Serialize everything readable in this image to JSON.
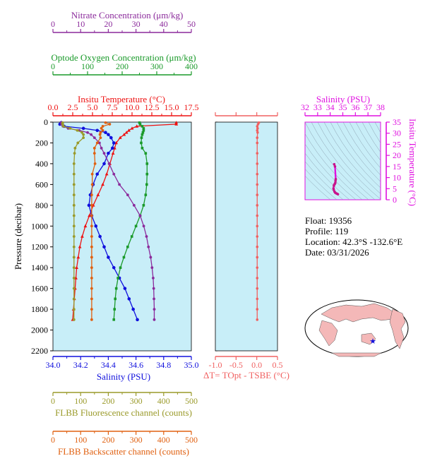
{
  "colors": {
    "nitrate": "#8b2a9b",
    "oxygen": "#1a9a2a",
    "temperature": "#ee1111",
    "salinity": "#1010dd",
    "fluorescence": "#9a9a2a",
    "backscatter": "#e06010",
    "delta_t": "#f06060",
    "ts_axis": "#e010e0",
    "panel_bg": "#c8eef8",
    "land": "#f4b8b8"
  },
  "float_info": {
    "float_line": "Float:  19356",
    "profile_line": "Profile:  119",
    "location_line": "Location:  42.3°S  -132.6°E",
    "date_line": "Date:  03/31/2026"
  },
  "chart_data": [
    {
      "type": "line",
      "panel": "main-profile",
      "ylabel": "Pressure (decibar)",
      "ylim": [
        0,
        2200
      ],
      "yticks": [
        0,
        200,
        400,
        600,
        800,
        1000,
        1200,
        1400,
        1600,
        1800,
        2000,
        2200
      ],
      "axes": [
        {
          "key": "nitrate",
          "label": "Nitrate Concentration (μm/kg)",
          "range": [
            0,
            50
          ],
          "ticks": [
            0,
            10,
            20,
            30,
            40,
            50
          ],
          "position": "top-1"
        },
        {
          "key": "oxygen",
          "label": "Optode Oxygen Concentration (μm/kg)",
          "range": [
            0,
            400
          ],
          "ticks": [
            0,
            100,
            200,
            300,
            400
          ],
          "position": "top-2"
        },
        {
          "key": "temperature",
          "label": "Insitu Temperature (°C)",
          "range": [
            0,
            17.5
          ],
          "ticks": [
            "0.0",
            "2.5",
            "5.0",
            "7.5",
            "10.0",
            "12.5",
            "15.0",
            "17.5"
          ],
          "position": "top-3"
        },
        {
          "key": "salinity",
          "label": "Salinity (PSU)",
          "range": [
            34.0,
            35.0
          ],
          "ticks": [
            "34.0",
            "34.2",
            "34.4",
            "34.6",
            "34.8",
            "35.0"
          ],
          "position": "bottom-1"
        },
        {
          "key": "fluorescence",
          "label": "FLBB Fluorescence channel (counts)",
          "range": [
            0,
            500
          ],
          "ticks": [
            0,
            100,
            200,
            300,
            400,
            500
          ],
          "position": "bottom-2"
        },
        {
          "key": "backscatter",
          "label": "FLBB Backscatter channel (counts)",
          "range": [
            0,
            500
          ],
          "ticks": [
            0,
            100,
            200,
            300,
            400,
            500
          ],
          "position": "bottom-3"
        }
      ],
      "series": [
        {
          "key": "temperature",
          "pressure": [
            5,
            20,
            40,
            60,
            80,
            100,
            120,
            150,
            200,
            250,
            300,
            400,
            500,
            600,
            700,
            800,
            900,
            1000,
            1100,
            1200,
            1300,
            1400,
            1500,
            1600,
            1700,
            1800,
            1900
          ],
          "values": [
            15.6,
            15.6,
            10.6,
            10.0,
            9.6,
            9.3,
            9.0,
            8.5,
            8.0,
            7.8,
            7.6,
            7.2,
            6.8,
            6.3,
            5.7,
            5.1,
            4.6,
            4.1,
            3.7,
            3.4,
            3.2,
            3.0,
            2.9,
            2.8,
            2.7,
            2.6,
            2.5
          ]
        },
        {
          "key": "salinity",
          "pressure": [
            5,
            20,
            40,
            60,
            80,
            100,
            120,
            150,
            200,
            250,
            300,
            400,
            500,
            600,
            700,
            800,
            900,
            1000,
            1100,
            1200,
            1300,
            1400,
            1500,
            1600,
            1700,
            1800,
            1900
          ],
          "values": [
            34.06,
            34.05,
            34.08,
            34.22,
            34.32,
            34.38,
            34.4,
            34.42,
            34.44,
            34.43,
            34.4,
            34.37,
            34.32,
            34.29,
            34.27,
            34.26,
            34.28,
            34.31,
            34.34,
            34.37,
            34.4,
            34.44,
            34.48,
            34.52,
            34.55,
            34.58,
            34.61
          ]
        },
        {
          "key": "oxygen",
          "pressure": [
            5,
            20,
            40,
            60,
            80,
            100,
            120,
            150,
            200,
            250,
            300,
            400,
            500,
            600,
            700,
            800,
            900,
            1000,
            1100,
            1200,
            1300,
            1400,
            1500,
            1600,
            1700,
            1800,
            1900
          ],
          "values": [
            250,
            252,
            258,
            262,
            262,
            260,
            258,
            256,
            255,
            258,
            268,
            272,
            272,
            271,
            268,
            262,
            252,
            240,
            228,
            216,
            205,
            195,
            188,
            183,
            180,
            178,
            176
          ]
        },
        {
          "key": "nitrate",
          "pressure": [
            5,
            20,
            40,
            60,
            80,
            100,
            120,
            150,
            200,
            250,
            300,
            400,
            500,
            600,
            700,
            800,
            900,
            1000,
            1100,
            1200,
            1300,
            1400,
            1500,
            1600,
            1700,
            1800,
            1900
          ],
          "values": [
            3.0,
            3.1,
            3.6,
            5.5,
            9.5,
            12.5,
            13.8,
            15.0,
            16.8,
            17.5,
            18.5,
            20.3,
            22.0,
            24.0,
            27.0,
            29.3,
            31.5,
            32.8,
            33.8,
            34.5,
            35.3,
            35.8,
            36.2,
            36.4,
            36.5,
            36.6,
            36.6
          ]
        },
        {
          "key": "fluorescence",
          "pressure": [
            5,
            20,
            40,
            60,
            80,
            100,
            120,
            150,
            200,
            250,
            300,
            400,
            500,
            600,
            700,
            800,
            900,
            1000,
            1100,
            1200,
            1300,
            1400,
            1500,
            1600,
            1700,
            1800,
            1900
          ],
          "values": [
            35,
            35,
            38,
            62,
            88,
            105,
            110,
            110,
            90,
            80,
            78,
            76,
            76,
            76,
            76,
            76,
            76,
            76,
            76,
            76,
            76,
            76,
            76,
            76,
            76,
            76,
            76
          ]
        },
        {
          "key": "backscatter",
          "pressure": [
            5,
            20,
            40,
            60,
            80,
            100,
            120,
            150,
            200,
            250,
            300,
            400,
            500,
            600,
            700,
            800,
            900,
            1000,
            1100,
            1200,
            1300,
            1400,
            1500,
            1600,
            1700,
            1800,
            1900
          ],
          "values": [
            190,
            205,
            180,
            175,
            180,
            172,
            170,
            172,
            160,
            150,
            150,
            152,
            142,
            142,
            140,
            140,
            140,
            140,
            140,
            140,
            140,
            140,
            140,
            140,
            140,
            140,
            140
          ]
        }
      ]
    },
    {
      "type": "line",
      "panel": "delta-t",
      "xlabel": "ΔT= TOpt - TSBE (°C)",
      "xlim": [
        -1.0,
        0.5
      ],
      "xticks": [
        "-1.0",
        "-0.5",
        "0.0",
        "0.5"
      ],
      "ylim": [
        0,
        2200
      ],
      "series": [
        {
          "key": "delta_t",
          "pressure": [
            5,
            20,
            40,
            60,
            80,
            100,
            150,
            200,
            300,
            400,
            500,
            600,
            700,
            800,
            900,
            1000,
            1100,
            1200,
            1300,
            1400,
            1500,
            1600,
            1700,
            1800,
            1900
          ],
          "values": [
            0.05,
            0.03,
            0.01,
            0.02,
            0.01,
            0.02,
            0.01,
            0.01,
            0.01,
            0.01,
            0.01,
            0.01,
            0.01,
            0.01,
            0.01,
            0.01,
            0.01,
            0.01,
            0.01,
            0.01,
            0.01,
            0.01,
            0.01,
            0.01,
            0.01
          ]
        }
      ]
    },
    {
      "type": "scatter",
      "panel": "ts-diagram",
      "xlabel": "Salinity (PSU)",
      "ylabel": "Insitu Temperature (°C)",
      "xlim": [
        32,
        38
      ],
      "ylim": [
        0,
        35
      ],
      "xticks": [
        32,
        33,
        34,
        35,
        36,
        37,
        38
      ],
      "yticks": [
        0,
        5,
        10,
        15,
        20,
        25,
        30,
        35
      ],
      "series": [
        {
          "key": "ts",
          "x": [
            34.61,
            34.55,
            34.48,
            34.4,
            34.34,
            34.28,
            34.26,
            34.29,
            34.32,
            34.37,
            34.4,
            34.42,
            34.44,
            34.38,
            34.32
          ],
          "y": [
            2.5,
            2.7,
            2.9,
            3.2,
            3.7,
            4.6,
            5.1,
            6.3,
            6.8,
            7.2,
            7.6,
            8.5,
            9.3,
            15.0,
            16.0
          ]
        }
      ]
    }
  ]
}
